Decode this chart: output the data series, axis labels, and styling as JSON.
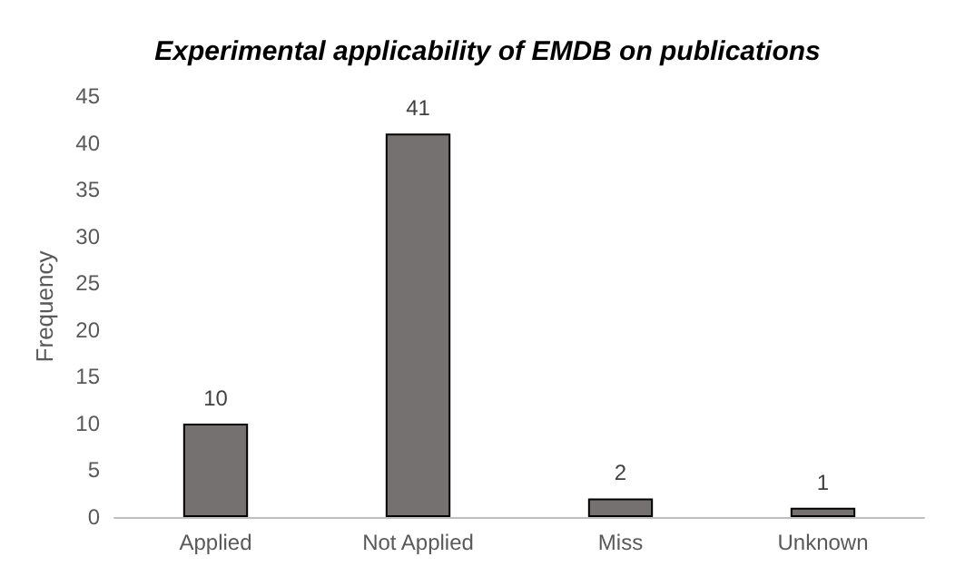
{
  "chart_data": {
    "type": "bar",
    "title": "Experimental applicability of EMDB on publications",
    "ylabel": "Frequency",
    "categories": [
      "Applied",
      "Not Applied",
      "Miss",
      "Unknown"
    ],
    "values": [
      10,
      41,
      2,
      1
    ],
    "color": "#767171",
    "ylim": [
      0,
      45
    ],
    "yticks": [
      0,
      5,
      10,
      15,
      20,
      25,
      30,
      35,
      40,
      45
    ],
    "grid": false,
    "data_labels": true
  }
}
